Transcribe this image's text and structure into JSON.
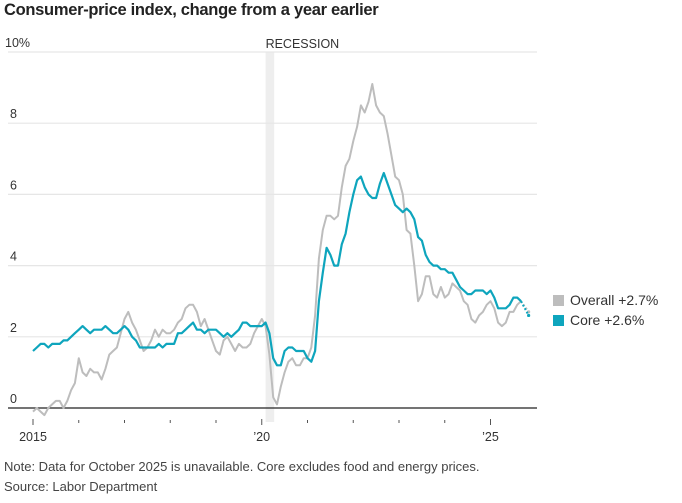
{
  "chart_data": {
    "type": "line",
    "title": "Consumer-price index, change from a year earlier",
    "xlabel": "",
    "ylabel": "",
    "ylim": [
      0,
      10
    ],
    "y_ticks": [
      {
        "value": 0,
        "label": "0"
      },
      {
        "value": 2,
        "label": "2"
      },
      {
        "value": 4,
        "label": "4"
      },
      {
        "value": 6,
        "label": "6"
      },
      {
        "value": 8,
        "label": "8"
      },
      {
        "value": 10,
        "label": "10%"
      }
    ],
    "x_range": [
      "2015-01",
      "2026-01"
    ],
    "x_ticks": [
      {
        "year": 2015,
        "label": "2015"
      },
      {
        "year": 2016,
        "label": ""
      },
      {
        "year": 2017,
        "label": ""
      },
      {
        "year": 2018,
        "label": ""
      },
      {
        "year": 2019,
        "label": ""
      },
      {
        "year": 2020,
        "label": "’20"
      },
      {
        "year": 2021,
        "label": ""
      },
      {
        "year": 2022,
        "label": ""
      },
      {
        "year": 2023,
        "label": ""
      },
      {
        "year": 2024,
        "label": ""
      },
      {
        "year": 2025,
        "label": "’25"
      }
    ],
    "grid": true,
    "recession": {
      "label": "RECESSION",
      "start": "2020-02",
      "end": "2020-04"
    },
    "start_month": "2015-01",
    "series": [
      {
        "name": "Overall",
        "legend_label": "Overall +2.7%",
        "color": "#bdbdbd",
        "values": [
          -0.1,
          0.0,
          -0.1,
          -0.2,
          0.0,
          0.1,
          0.2,
          0.2,
          0.0,
          0.2,
          0.5,
          0.7,
          1.4,
          1.0,
          0.9,
          1.1,
          1.0,
          1.0,
          0.8,
          1.1,
          1.5,
          1.6,
          1.7,
          2.1,
          2.5,
          2.7,
          2.4,
          2.2,
          1.9,
          1.6,
          1.7,
          1.9,
          2.2,
          2.0,
          2.2,
          2.1,
          2.1,
          2.2,
          2.4,
          2.5,
          2.8,
          2.9,
          2.9,
          2.7,
          2.3,
          2.5,
          2.2,
          1.9,
          1.6,
          1.5,
          1.9,
          2.0,
          1.8,
          1.6,
          1.8,
          1.7,
          1.7,
          1.8,
          2.1,
          2.3,
          2.5,
          2.3,
          1.5,
          0.3,
          0.1,
          0.6,
          1.0,
          1.3,
          1.4,
          1.2,
          1.2,
          1.4,
          1.4,
          1.7,
          2.6,
          4.2,
          5.0,
          5.4,
          5.4,
          5.3,
          5.4,
          6.2,
          6.8,
          7.0,
          7.5,
          7.9,
          8.5,
          8.3,
          8.6,
          9.1,
          8.5,
          8.3,
          8.2,
          7.7,
          7.1,
          6.5,
          6.4,
          6.0,
          5.0,
          4.9,
          4.0,
          3.0,
          3.2,
          3.7,
          3.7,
          3.2,
          3.1,
          3.4,
          3.1,
          3.2,
          3.5,
          3.4,
          3.3,
          3.0,
          2.9,
          2.5,
          2.4,
          2.6,
          2.7,
          2.9,
          3.0,
          2.8,
          2.4,
          2.3,
          2.4,
          2.7,
          2.7,
          2.9,
          3.0
        ],
        "latest": {
          "month": "2025-11",
          "value": 2.7
        }
      },
      {
        "name": "Core",
        "legend_label": "Core +2.6%",
        "color": "#0ea5bd",
        "values": [
          1.6,
          1.7,
          1.8,
          1.8,
          1.7,
          1.8,
          1.8,
          1.8,
          1.9,
          1.9,
          2.0,
          2.1,
          2.2,
          2.3,
          2.2,
          2.1,
          2.2,
          2.2,
          2.2,
          2.3,
          2.2,
          2.1,
          2.1,
          2.2,
          2.3,
          2.2,
          2.0,
          1.9,
          1.7,
          1.7,
          1.7,
          1.7,
          1.7,
          1.8,
          1.7,
          1.8,
          1.8,
          1.8,
          2.1,
          2.1,
          2.2,
          2.3,
          2.4,
          2.2,
          2.2,
          2.1,
          2.2,
          2.2,
          2.2,
          2.1,
          2.0,
          2.1,
          2.0,
          2.1,
          2.2,
          2.4,
          2.4,
          2.3,
          2.3,
          2.3,
          2.3,
          2.4,
          2.1,
          1.4,
          1.2,
          1.2,
          1.6,
          1.7,
          1.7,
          1.6,
          1.6,
          1.6,
          1.4,
          1.3,
          1.6,
          3.0,
          3.8,
          4.5,
          4.3,
          4.0,
          4.0,
          4.6,
          4.9,
          5.5,
          6.0,
          6.4,
          6.5,
          6.2,
          6.0,
          5.9,
          5.9,
          6.3,
          6.6,
          6.3,
          6.0,
          5.7,
          5.6,
          5.5,
          5.6,
          5.5,
          5.3,
          4.8,
          4.7,
          4.3,
          4.1,
          4.0,
          4.0,
          3.9,
          3.9,
          3.8,
          3.8,
          3.6,
          3.4,
          3.3,
          3.2,
          3.2,
          3.3,
          3.3,
          3.3,
          3.2,
          3.3,
          3.1,
          2.8,
          2.8,
          2.8,
          2.9,
          3.1,
          3.1,
          3.0
        ],
        "latest": {
          "month": "2025-11",
          "value": 2.6
        }
      }
    ],
    "note": "Note: Data for October 2025 is unavailable. Core excludes food and energy prices.",
    "source": "Source: Labor Department"
  }
}
